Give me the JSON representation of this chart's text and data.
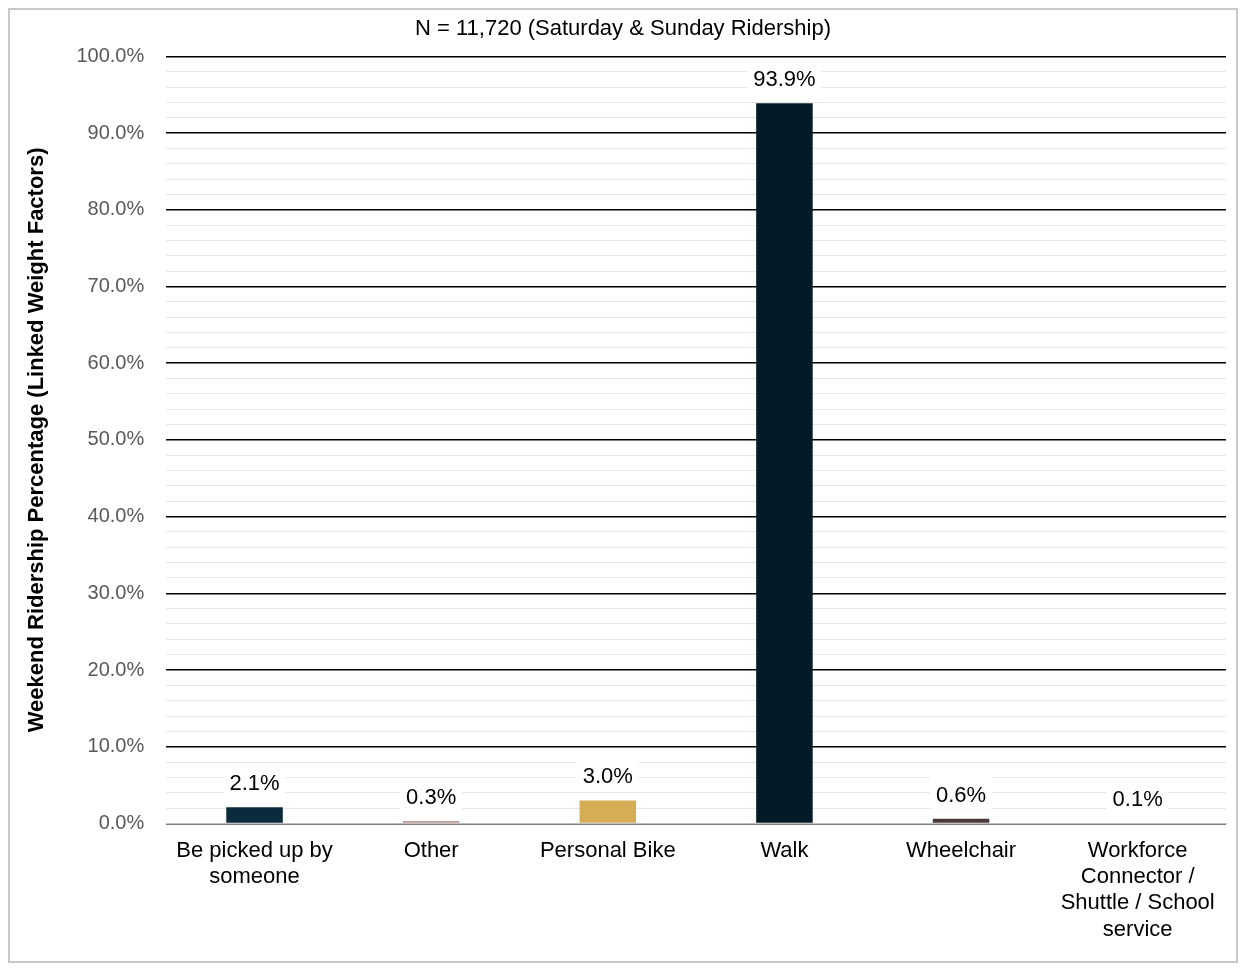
{
  "chart_data": {
    "type": "bar",
    "title": "N = 11,720 (Saturday & Sunday Ridership)",
    "ylabel": "Weekend Ridership Percentage (Linked Weight Factors)",
    "categories": [
      "Be picked up by someone",
      "Other",
      "Personal Bike",
      "Walk",
      "Wheelchair",
      "Workforce Connector / Shuttle / School service"
    ],
    "values": [
      2.1,
      0.3,
      3.0,
      93.9,
      0.6,
      0.1
    ],
    "colors": [
      "#0b2a3c",
      "#b89a9a",
      "#d4ad55",
      "#021b26",
      "#4a3a3a",
      "#8a9aa8"
    ],
    "value_labels": [
      "2.1%",
      "0.3%",
      "3.0%",
      "93.9%",
      "0.6%",
      "0.1%"
    ],
    "ylim": [
      0,
      100
    ],
    "yticks": [
      {
        "value": 0,
        "label": "0.0%"
      },
      {
        "value": 2,
        "label": null
      },
      {
        "value": 4,
        "label": null
      },
      {
        "value": 6,
        "label": null
      },
      {
        "value": 8,
        "label": null
      },
      {
        "value": 10,
        "label": "10.0%"
      },
      {
        "value": 12,
        "label": null
      },
      {
        "value": 14,
        "label": null
      },
      {
        "value": 16,
        "label": null
      },
      {
        "value": 18,
        "label": null
      },
      {
        "value": 20,
        "label": "20.0%"
      },
      {
        "value": 22,
        "label": null
      },
      {
        "value": 24,
        "label": null
      },
      {
        "value": 26,
        "label": null
      },
      {
        "value": 28,
        "label": null
      },
      {
        "value": 30,
        "label": "30.0%"
      },
      {
        "value": 32,
        "label": null
      },
      {
        "value": 34,
        "label": null
      },
      {
        "value": 36,
        "label": null
      },
      {
        "value": 38,
        "label": null
      },
      {
        "value": 40,
        "label": "40.0%"
      },
      {
        "value": 42,
        "label": null
      },
      {
        "value": 44,
        "label": null
      },
      {
        "value": 46,
        "label": null
      },
      {
        "value": 48,
        "label": null
      },
      {
        "value": 50,
        "label": "50.0%"
      },
      {
        "value": 52,
        "label": null
      },
      {
        "value": 54,
        "label": null
      },
      {
        "value": 56,
        "label": null
      },
      {
        "value": 58,
        "label": null
      },
      {
        "value": 60,
        "label": "60.0%"
      },
      {
        "value": 62,
        "label": null
      },
      {
        "value": 64,
        "label": null
      },
      {
        "value": 66,
        "label": null
      },
      {
        "value": 68,
        "label": null
      },
      {
        "value": 70,
        "label": "70.0%"
      },
      {
        "value": 72,
        "label": null
      },
      {
        "value": 74,
        "label": null
      },
      {
        "value": 76,
        "label": null
      },
      {
        "value": 78,
        "label": null
      },
      {
        "value": 80,
        "label": "80.0%"
      },
      {
        "value": 82,
        "label": null
      },
      {
        "value": 84,
        "label": null
      },
      {
        "value": 86,
        "label": null
      },
      {
        "value": 88,
        "label": null
      },
      {
        "value": 90,
        "label": "90.0%"
      },
      {
        "value": 92,
        "label": null
      },
      {
        "value": 94,
        "label": null
      },
      {
        "value": 96,
        "label": null
      },
      {
        "value": 98,
        "label": null
      },
      {
        "value": 100,
        "label": "100.0%"
      }
    ],
    "grid": "y",
    "legend": false
  }
}
